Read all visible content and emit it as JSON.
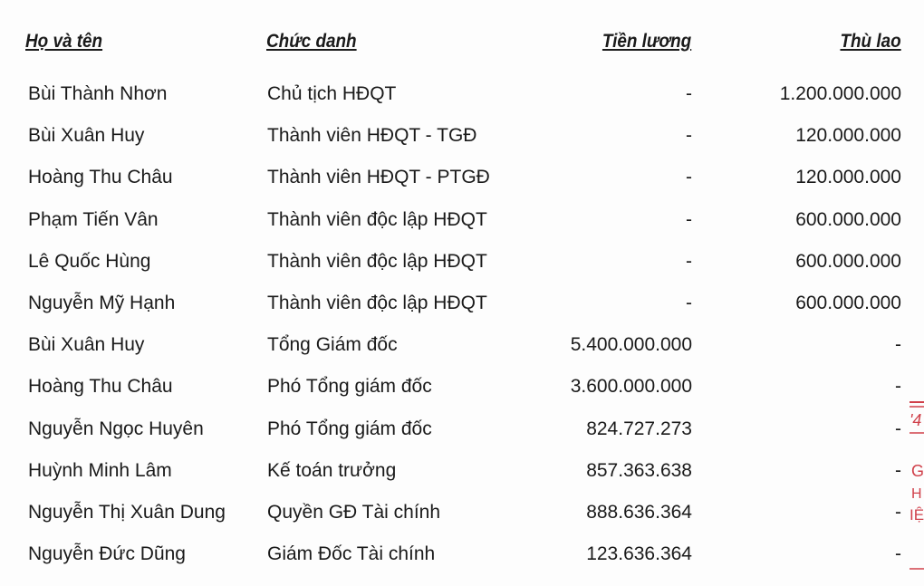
{
  "headers": {
    "name": "Họ và tên",
    "title": "Chức danh",
    "salary": "Tiền lương",
    "fee": "Thù lao"
  },
  "rows": [
    {
      "name": "Bùi Thành Nhơn",
      "title": "Chủ tịch HĐQT",
      "salary": "-",
      "fee": "1.200.000.000"
    },
    {
      "name": "Bùi Xuân Huy",
      "title": "Thành viên HĐQT - TGĐ",
      "salary": "-",
      "fee": "120.000.000"
    },
    {
      "name": "Hoàng Thu Châu",
      "title": "Thành viên HĐQT - PTGĐ",
      "salary": "-",
      "fee": "120.000.000"
    },
    {
      "name": "Phạm Tiến Vân",
      "title": "Thành viên độc lập HĐQT",
      "salary": "-",
      "fee": "600.000.000"
    },
    {
      "name": "Lê Quốc Hùng",
      "title": "Thành viên độc lập HĐQT",
      "salary": "-",
      "fee": "600.000.000"
    },
    {
      "name": "Nguyễn Mỹ Hạnh",
      "title": "Thành viên độc lập HĐQT",
      "salary": "-",
      "fee": "600.000.000"
    },
    {
      "name": "Bùi Xuân Huy",
      "title": "Tổng Giám đốc",
      "salary": "5.400.000.000",
      "fee": "-"
    },
    {
      "name": "Hoàng Thu Châu",
      "title": "Phó Tổng giám đốc",
      "salary": "3.600.000.000",
      "fee": "-"
    },
    {
      "name": "Nguyễn Ngọc Huyên",
      "title": "Phó Tổng giám đốc",
      "salary": "824.727.273",
      "fee": "-"
    },
    {
      "name": "Huỳnh Minh Lâm",
      "title": "Kế toán trưởng",
      "salary": "857.363.638",
      "fee": "-"
    },
    {
      "name": "Nguyễn Thị Xuân Dung",
      "title": "Quyền GĐ Tài chính",
      "salary": "888.636.364",
      "fee": "-"
    },
    {
      "name": "Nguyễn Đức Dũng",
      "title": "Giám Đốc Tài chính",
      "salary": "123.636.364",
      "fee": "-"
    }
  ],
  "stamp": {
    "color": "#d0404a",
    "fragments": [
      "'4",
      "G",
      "H",
      "IỆ"
    ]
  }
}
